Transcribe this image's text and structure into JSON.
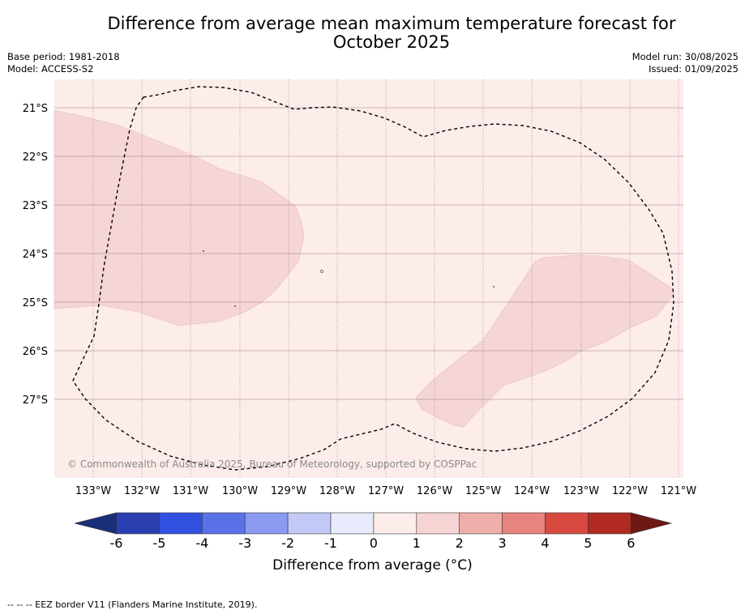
{
  "title_line1": "Difference from average mean maximum temperature forecast for",
  "title_line2": "October 2025",
  "meta_left": {
    "base_period": "Base period: 1981-2018",
    "model": "Model: ACCESS-S2"
  },
  "meta_right": {
    "model_run": "Model run: 30/08/2025",
    "issued": "Issued: 01/09/2025"
  },
  "lat_labels": [
    "21°S",
    "22°S",
    "23°S",
    "24°S",
    "25°S",
    "26°S",
    "27°S"
  ],
  "lon_labels": [
    "133°W",
    "132°W",
    "131°W",
    "130°W",
    "129°W",
    "128°W",
    "127°W",
    "126°W",
    "125°W",
    "124°W",
    "123°W",
    "122°W",
    "121°W"
  ],
  "copyright": "© Commonwealth of Australia 2025, Bureau of Meteorology, supported by COSPPac",
  "colorbar": {
    "ticks": [
      "-6",
      "-5",
      "-4",
      "-3",
      "-2",
      "-1",
      "0",
      "1",
      "2",
      "3",
      "4",
      "5",
      "6"
    ],
    "colors": [
      "#1a2f7a",
      "#2a3fb0",
      "#3050e0",
      "#5a72e8",
      "#8a9af0",
      "#c2c9f6",
      "#e8ebfc",
      "#fcecea",
      "#f6d4d4",
      "#eeaeaa",
      "#e8847e",
      "#d84a40",
      "#b02a22",
      "#6e1a14"
    ],
    "label": "Difference from average (°C)"
  },
  "footer": "--  --  -- EEZ border V11 (Flanders Marine Institute, 2019).",
  "map_colors": {
    "background_anomaly": "#fcecea",
    "region_anomaly": "#f6d4d4"
  }
}
